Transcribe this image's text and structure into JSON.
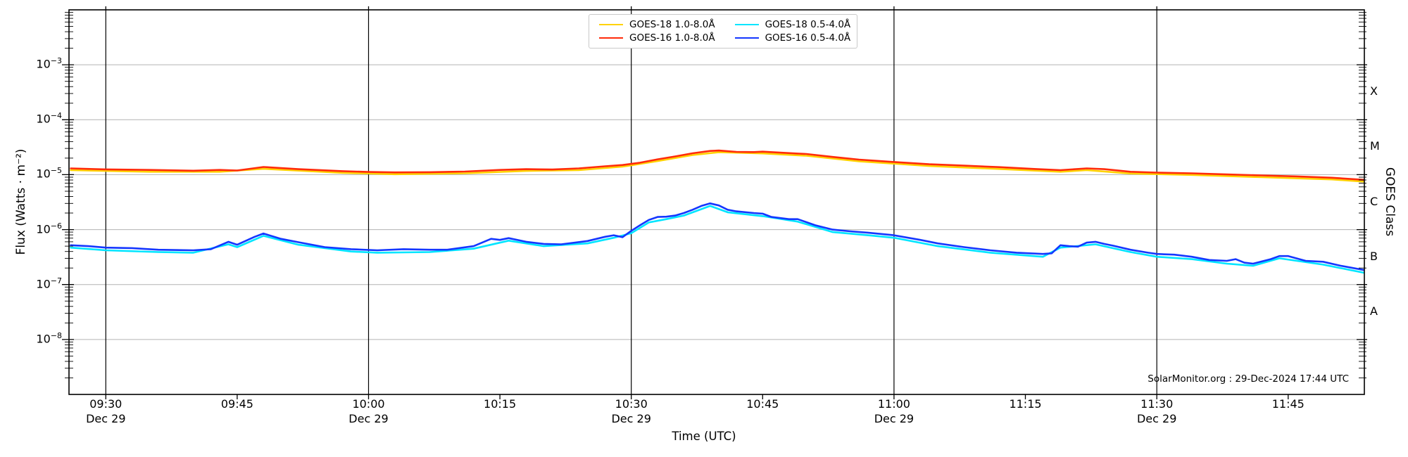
{
  "figure": {
    "annotation": "SolarMonitor.org : 29-Dec-2024 17:44 UTC",
    "legend": {
      "items": [
        {
          "label": "GOES-18 1.0-8.0Å",
          "color": "#ffd200"
        },
        {
          "label": "GOES-18 0.5-4.0Å",
          "color": "#00e5ff"
        },
        {
          "label": "GOES-16 1.0-8.0Å",
          "color": "#ff2b0a"
        },
        {
          "label": "GOES-16 0.5-4.0Å",
          "color": "#1437ff"
        }
      ]
    },
    "axes": {
      "ylabel": "Flux (Watts · m⁻²)",
      "xlabel": "Time (UTC)",
      "right_label": "GOES Class",
      "x_ticks": [
        {
          "label": "09:30",
          "sub": "Dec 29",
          "minutes": 570
        },
        {
          "label": "09:45",
          "minutes": 585
        },
        {
          "label": "10:00",
          "sub": "Dec 29",
          "minutes": 600
        },
        {
          "label": "10:15",
          "minutes": 615
        },
        {
          "label": "10:30",
          "sub": "Dec 29",
          "minutes": 630
        },
        {
          "label": "10:45",
          "minutes": 645
        },
        {
          "label": "11:00",
          "sub": "Dec 29",
          "minutes": 660
        },
        {
          "label": "11:15",
          "minutes": 675
        },
        {
          "label": "11:30",
          "sub": "Dec 29",
          "minutes": 690
        },
        {
          "label": "11:45",
          "minutes": 705
        }
      ],
      "y_ticks": [
        {
          "base": "10",
          "exp": "−3",
          "value": 0.001
        },
        {
          "base": "10",
          "exp": "−4",
          "value": 0.0001
        },
        {
          "base": "10",
          "exp": "−5",
          "value": 1e-05
        },
        {
          "base": "10",
          "exp": "−6",
          "value": 1e-06
        },
        {
          "base": "10",
          "exp": "−7",
          "value": 1e-07
        },
        {
          "base": "10",
          "exp": "−8",
          "value": 1e-08
        }
      ],
      "class_ticks": [
        {
          "label": "X",
          "log": -3.5
        },
        {
          "label": "M",
          "log": -4.5
        },
        {
          "label": "C",
          "log": -5.5
        },
        {
          "label": "B",
          "log": -6.5
        },
        {
          "label": "A",
          "log": -7.5
        }
      ]
    }
  },
  "chart_data": {
    "type": "line",
    "title": "",
    "xlabel": "Time (UTC)",
    "ylabel": "Flux (Watts · m⁻²)",
    "ylabel_right": "GOES Class",
    "yscale": "log",
    "ylim": [
      1e-09,
      0.01
    ],
    "xlim_minutes_utc": [
      565.8,
      713.7
    ],
    "x_unit": "minutes after 00:00 UTC on 29-Dec-2024",
    "grid": {
      "vertical_black_at_minutes": [
        570,
        600,
        630,
        660,
        690
      ],
      "horizontal_gray_at_decades": [
        -3,
        -4,
        -5,
        -6,
        -7,
        -8
      ]
    },
    "legend_position": "top-center",
    "series": [
      {
        "id": "goes18-long",
        "name": "GOES-18 1.0-8.0Å",
        "color": "#ffd200",
        "points": [
          [
            566,
            1.21e-05
          ],
          [
            575,
            1.13e-05
          ],
          [
            583,
            1.13e-05
          ],
          [
            588,
            1.28e-05
          ],
          [
            597,
            1.08e-05
          ],
          [
            603,
            1.02e-05
          ],
          [
            611,
            1.06e-05
          ],
          [
            618,
            1.17e-05
          ],
          [
            624,
            1.21e-05
          ],
          [
            629,
            1.4e-05
          ],
          [
            633,
            1.77e-05
          ],
          [
            637,
            2.28e-05
          ],
          [
            640,
            2.56e-05
          ],
          [
            645,
            2.44e-05
          ],
          [
            650,
            2.21e-05
          ],
          [
            656,
            1.75e-05
          ],
          [
            664,
            1.44e-05
          ],
          [
            672,
            1.27e-05
          ],
          [
            679,
            1.13e-05
          ],
          [
            682,
            1.21e-05
          ],
          [
            687,
            1.05e-05
          ],
          [
            694,
            9.9e-06
          ],
          [
            702,
            9e-06
          ],
          [
            710,
            8.2e-06
          ],
          [
            714,
            7.4e-06
          ]
        ]
      },
      {
        "id": "goes18-short",
        "name": "GOES-18 0.5-4.0Å",
        "color": "#00e5ff",
        "points": [
          [
            566,
            4.7e-07
          ],
          [
            570,
            4.2e-07
          ],
          [
            576,
            3.9e-07
          ],
          [
            580,
            3.8e-07
          ],
          [
            584,
            5.4e-07
          ],
          [
            585,
            4.8e-07
          ],
          [
            588,
            7.7e-07
          ],
          [
            592,
            5.3e-07
          ],
          [
            598,
            4e-07
          ],
          [
            601,
            3.8e-07
          ],
          [
            607,
            3.9e-07
          ],
          [
            612,
            4.5e-07
          ],
          [
            616,
            6.3e-07
          ],
          [
            620,
            5e-07
          ],
          [
            625,
            5.6e-07
          ],
          [
            628,
            7.1e-07
          ],
          [
            630,
            8.6e-07
          ],
          [
            632,
            1.35e-06
          ],
          [
            634,
            1.55e-06
          ],
          [
            636,
            1.8e-06
          ],
          [
            639,
            2.7e-06
          ],
          [
            641,
            2.07e-06
          ],
          [
            645,
            1.76e-06
          ],
          [
            649,
            1.4e-06
          ],
          [
            653,
            9e-07
          ],
          [
            657,
            7.9e-07
          ],
          [
            660,
            7.1e-07
          ],
          [
            665,
            5e-07
          ],
          [
            671,
            3.8e-07
          ],
          [
            677,
            3.2e-07
          ],
          [
            679,
            4.7e-07
          ],
          [
            683,
            5.4e-07
          ],
          [
            687,
            3.9e-07
          ],
          [
            690,
            3.2e-07
          ],
          [
            694,
            2.9e-07
          ],
          [
            698,
            2.4e-07
          ],
          [
            701,
            2.2e-07
          ],
          [
            704,
            3e-07
          ],
          [
            709,
            2.3e-07
          ],
          [
            714,
            1.6e-07
          ]
        ]
      },
      {
        "id": "goes16-long",
        "name": "GOES-16 1.0-8.0Å",
        "color": "#ff2b0a",
        "points": [
          [
            566,
            1.3e-05
          ],
          [
            570,
            1.25e-05
          ],
          [
            575,
            1.22e-05
          ],
          [
            580,
            1.18e-05
          ],
          [
            583,
            1.22e-05
          ],
          [
            585,
            1.19e-05
          ],
          [
            588,
            1.38e-05
          ],
          [
            592,
            1.26e-05
          ],
          [
            597,
            1.16e-05
          ],
          [
            600,
            1.12e-05
          ],
          [
            603,
            1.1e-05
          ],
          [
            607,
            1.11e-05
          ],
          [
            611,
            1.14e-05
          ],
          [
            615,
            1.22e-05
          ],
          [
            618,
            1.26e-05
          ],
          [
            621,
            1.24e-05
          ],
          [
            624,
            1.3e-05
          ],
          [
            627,
            1.42e-05
          ],
          [
            629,
            1.5e-05
          ],
          [
            631,
            1.65e-05
          ],
          [
            633,
            1.9e-05
          ],
          [
            635,
            2.15e-05
          ],
          [
            637,
            2.45e-05
          ],
          [
            639,
            2.7e-05
          ],
          [
            640,
            2.75e-05
          ],
          [
            642,
            2.6e-05
          ],
          [
            644,
            2.58e-05
          ],
          [
            645,
            2.62e-05
          ],
          [
            647,
            2.52e-05
          ],
          [
            649,
            2.42e-05
          ],
          [
            650,
            2.38e-05
          ],
          [
            653,
            2.1e-05
          ],
          [
            656,
            1.88e-05
          ],
          [
            660,
            1.7e-05
          ],
          [
            664,
            1.55e-05
          ],
          [
            668,
            1.46e-05
          ],
          [
            672,
            1.37e-05
          ],
          [
            676,
            1.27e-05
          ],
          [
            679,
            1.21e-05
          ],
          [
            682,
            1.3e-05
          ],
          [
            684,
            1.26e-05
          ],
          [
            687,
            1.13e-05
          ],
          [
            690,
            1.09e-05
          ],
          [
            694,
            1.06e-05
          ],
          [
            698,
            1.01e-05
          ],
          [
            702,
            9.7e-06
          ],
          [
            706,
            9.3e-06
          ],
          [
            710,
            8.8e-06
          ],
          [
            714,
            8e-06
          ]
        ]
      },
      {
        "id": "goes16-short",
        "name": "GOES-16 0.5-4.0Å",
        "color": "#1437ff",
        "points": [
          [
            566,
            5.2e-07
          ],
          [
            568,
            5e-07
          ],
          [
            570,
            4.7e-07
          ],
          [
            573,
            4.6e-07
          ],
          [
            576,
            4.3e-07
          ],
          [
            580,
            4.2e-07
          ],
          [
            582,
            4.4e-07
          ],
          [
            584,
            6e-07
          ],
          [
            585,
            5.3e-07
          ],
          [
            587,
            7.4e-07
          ],
          [
            588,
            8.5e-07
          ],
          [
            590,
            6.8e-07
          ],
          [
            592,
            5.9e-07
          ],
          [
            595,
            4.8e-07
          ],
          [
            598,
            4.4e-07
          ],
          [
            601,
            4.2e-07
          ],
          [
            604,
            4.4e-07
          ],
          [
            607,
            4.3e-07
          ],
          [
            609,
            4.3e-07
          ],
          [
            612,
            5e-07
          ],
          [
            614,
            6.8e-07
          ],
          [
            615,
            6.5e-07
          ],
          [
            616,
            7e-07
          ],
          [
            618,
            6e-07
          ],
          [
            620,
            5.5e-07
          ],
          [
            622,
            5.4e-07
          ],
          [
            625,
            6.2e-07
          ],
          [
            627,
            7.4e-07
          ],
          [
            628,
            7.9e-07
          ],
          [
            629,
            7.3e-07
          ],
          [
            630,
            9.5e-07
          ],
          [
            631,
            1.2e-06
          ],
          [
            632,
            1.5e-06
          ],
          [
            633,
            1.7e-06
          ],
          [
            634,
            1.72e-06
          ],
          [
            635,
            1.8e-06
          ],
          [
            636,
            2e-06
          ],
          [
            637,
            2.3e-06
          ],
          [
            638,
            2.7e-06
          ],
          [
            639,
            3e-06
          ],
          [
            640,
            2.75e-06
          ],
          [
            641,
            2.3e-06
          ],
          [
            642,
            2.15e-06
          ],
          [
            644,
            2e-06
          ],
          [
            645,
            1.95e-06
          ],
          [
            646,
            1.7e-06
          ],
          [
            648,
            1.55e-06
          ],
          [
            649,
            1.55e-06
          ],
          [
            651,
            1.2e-06
          ],
          [
            653,
            1e-06
          ],
          [
            655,
            9.3e-07
          ],
          [
            657,
            8.8e-07
          ],
          [
            660,
            7.9e-07
          ],
          [
            663,
            6.5e-07
          ],
          [
            665,
            5.6e-07
          ],
          [
            668,
            4.8e-07
          ],
          [
            671,
            4.2e-07
          ],
          [
            674,
            3.8e-07
          ],
          [
            677,
            3.6e-07
          ],
          [
            678,
            3.7e-07
          ],
          [
            679,
            5.2e-07
          ],
          [
            680,
            5e-07
          ],
          [
            681,
            4.9e-07
          ],
          [
            682,
            5.8e-07
          ],
          [
            683,
            6e-07
          ],
          [
            684,
            5.5e-07
          ],
          [
            685,
            5.1e-07
          ],
          [
            687,
            4.3e-07
          ],
          [
            689,
            3.8e-07
          ],
          [
            690,
            3.6e-07
          ],
          [
            692,
            3.5e-07
          ],
          [
            694,
            3.2e-07
          ],
          [
            696,
            2.8e-07
          ],
          [
            698,
            2.7e-07
          ],
          [
            699,
            2.9e-07
          ],
          [
            700,
            2.5e-07
          ],
          [
            701,
            2.4e-07
          ],
          [
            703,
            2.9e-07
          ],
          [
            704,
            3.3e-07
          ],
          [
            705,
            3.3e-07
          ],
          [
            707,
            2.7e-07
          ],
          [
            709,
            2.6e-07
          ],
          [
            711,
            2.2e-07
          ],
          [
            714,
            1.8e-07
          ]
        ]
      }
    ]
  }
}
